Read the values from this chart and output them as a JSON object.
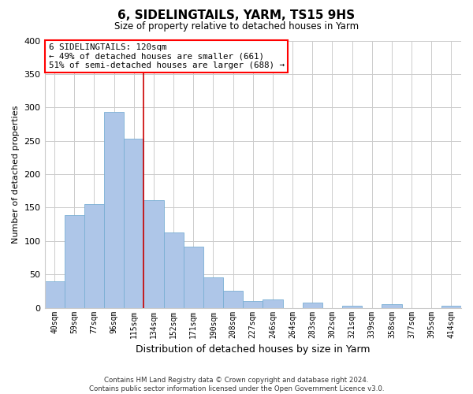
{
  "title": "6, SIDELINGTAILS, YARM, TS15 9HS",
  "subtitle": "Size of property relative to detached houses in Yarm",
  "xlabel": "Distribution of detached houses by size in Yarm",
  "ylabel": "Number of detached properties",
  "categories": [
    "40sqm",
    "59sqm",
    "77sqm",
    "96sqm",
    "115sqm",
    "134sqm",
    "152sqm",
    "171sqm",
    "190sqm",
    "208sqm",
    "227sqm",
    "246sqm",
    "264sqm",
    "283sqm",
    "302sqm",
    "321sqm",
    "339sqm",
    "358sqm",
    "377sqm",
    "395sqm",
    "414sqm"
  ],
  "values": [
    40,
    139,
    155,
    293,
    253,
    161,
    113,
    92,
    46,
    25,
    10,
    13,
    0,
    8,
    0,
    3,
    0,
    5,
    0,
    0,
    3
  ],
  "bar_color": "#aec6e8",
  "bar_edge_color": "#7aafd4",
  "highlight_index": 4,
  "highlight_color": "#cc0000",
  "ylim": [
    0,
    400
  ],
  "yticks": [
    0,
    50,
    100,
    150,
    200,
    250,
    300,
    350,
    400
  ],
  "annotation_line1": "6 SIDELINGTAILS: 120sqm",
  "annotation_line2": "← 49% of detached houses are smaller (661)",
  "annotation_line3": "51% of semi-detached houses are larger (688) →",
  "footer": "Contains HM Land Registry data © Crown copyright and database right 2024.\nContains public sector information licensed under the Open Government Licence v3.0.",
  "background_color": "#ffffff",
  "grid_color": "#cccccc"
}
